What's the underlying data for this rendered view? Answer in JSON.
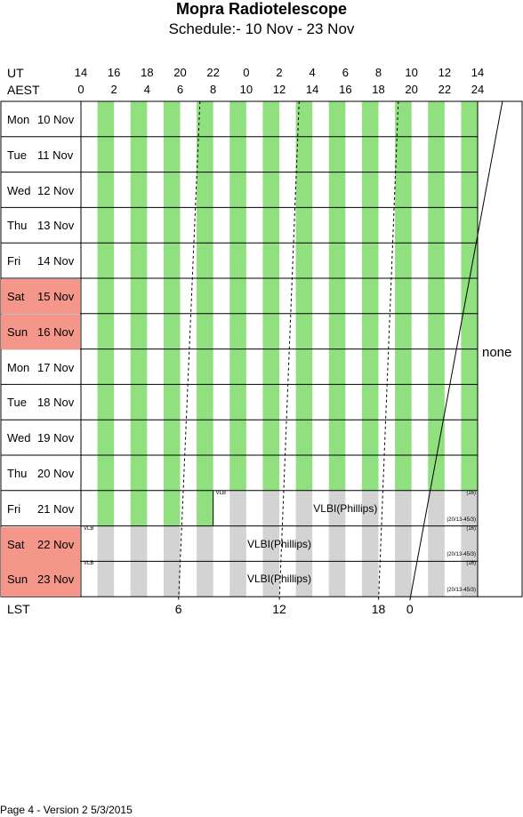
{
  "header": {
    "title": "Mopra Radiotelescope",
    "subtitle": "Schedule:- 10 Nov - 23 Nov"
  },
  "axes": {
    "ut_label": "UT",
    "aest_label": "AEST",
    "ut_ticks": [
      "14",
      "16",
      "18",
      "20",
      "22",
      "0",
      "2",
      "4",
      "6",
      "8",
      "10",
      "12",
      "14"
    ],
    "aest_ticks": [
      "0",
      "2",
      "4",
      "6",
      "8",
      "10",
      "12",
      "14",
      "16",
      "18",
      "20",
      "22",
      "24"
    ],
    "lst_label": "LST",
    "lst_ticks": [
      "6",
      "12",
      "18",
      "0"
    ]
  },
  "days": [
    {
      "dow": "Mon",
      "date": "10 Nov",
      "weekend": false
    },
    {
      "dow": "Tue",
      "date": "11 Nov",
      "weekend": false
    },
    {
      "dow": "Wed",
      "date": "12 Nov",
      "weekend": false
    },
    {
      "dow": "Thu",
      "date": "13 Nov",
      "weekend": false
    },
    {
      "dow": "Fri",
      "date": "14 Nov",
      "weekend": false
    },
    {
      "dow": "Sat",
      "date": "15 Nov",
      "weekend": true
    },
    {
      "dow": "Sun",
      "date": "16 Nov",
      "weekend": true
    },
    {
      "dow": "Mon",
      "date": "17 Nov",
      "weekend": false
    },
    {
      "dow": "Tue",
      "date": "18 Nov",
      "weekend": false
    },
    {
      "dow": "Wed",
      "date": "19 Nov",
      "weekend": false
    },
    {
      "dow": "Thu",
      "date": "20 Nov",
      "weekend": false
    },
    {
      "dow": "Fri",
      "date": "21 Nov",
      "weekend": false
    },
    {
      "dow": "Sat",
      "date": "22 Nov",
      "weekend": true
    },
    {
      "dow": "Sun",
      "date": "23 Nov",
      "weekend": true
    }
  ],
  "blocks": [
    {
      "day": 11,
      "start_aest": 8,
      "end_aest": 24,
      "label": "VLBI(Phillips)",
      "corner_tl": "VLB",
      "corner_tr": "(16)",
      "corner_br": "(20/13-45/3)"
    },
    {
      "day": 12,
      "start_aest": 0,
      "end_aest": 24,
      "label": "VLBI(Phillips)",
      "corner_tl": "VLB",
      "corner_tr": "(16)",
      "corner_br": "(20/13-45/3)"
    },
    {
      "day": 13,
      "start_aest": 0,
      "end_aest": 24,
      "label": "VLBI(Phillips)",
      "corner_tl": "VLB",
      "corner_tr": "(16)",
      "corner_br": "(20/13-45/3)"
    }
  ],
  "side_note": "none",
  "footer": "Page 4 - Version 2  5/3/2015",
  "colors": {
    "green_stripe": "#90e080",
    "grey_stripe": "#d3d3d3",
    "weekend": "#f4978a"
  }
}
